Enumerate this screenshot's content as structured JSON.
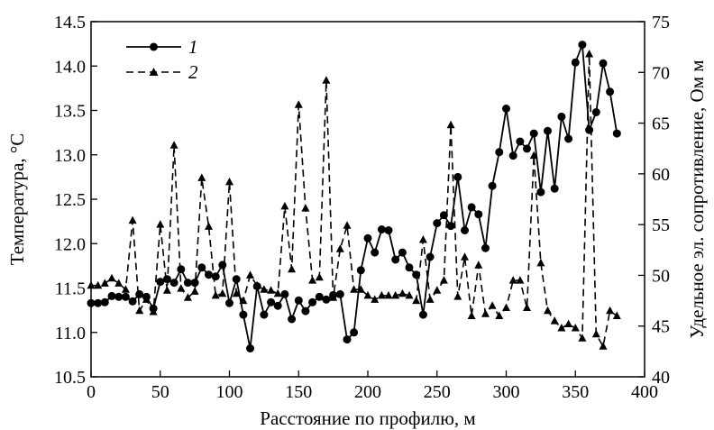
{
  "chart_data": {
    "type": "line",
    "xlabel": "Расстояние по профилю, м",
    "ylabel_left": "Температура, °C",
    "ylabel_right": "Удельное эл. сопротивление, Ом м",
    "xlim": [
      0,
      400
    ],
    "ylim_left": [
      10.5,
      14.5
    ],
    "ylim_right": [
      40,
      75
    ],
    "x_ticks": [
      "0",
      "50",
      "100",
      "150",
      "200",
      "250",
      "300",
      "350",
      "400"
    ],
    "y_left_ticks": [
      "10.5",
      "11.0",
      "11.5",
      "12.0",
      "12.5",
      "13.0",
      "13.5",
      "14.0",
      "14.5"
    ],
    "y_right_ticks": [
      "40",
      "45",
      "50",
      "55",
      "60",
      "65",
      "70",
      "75"
    ],
    "grid": false,
    "legend_position": "top-left",
    "series": [
      {
        "name": "1",
        "axis": "left",
        "style": "solid",
        "marker": "circle",
        "x": [
          0,
          5,
          10,
          15,
          20,
          25,
          30,
          35,
          40,
          45,
          50,
          55,
          60,
          65,
          70,
          75,
          80,
          85,
          90,
          95,
          100,
          105,
          110,
          115,
          120,
          125,
          130,
          135,
          140,
          145,
          150,
          155,
          160,
          165,
          170,
          175,
          180,
          185,
          190,
          195,
          200,
          205,
          210,
          215,
          220,
          225,
          230,
          235,
          240,
          245,
          250,
          255,
          260,
          265,
          270,
          275,
          280,
          285,
          290,
          295,
          300,
          305,
          310,
          315,
          320,
          325,
          330,
          335,
          340,
          345,
          350,
          355,
          360,
          365,
          370,
          375,
          380
        ],
        "values": [
          11.33,
          11.33,
          11.34,
          11.41,
          11.4,
          11.4,
          11.35,
          11.43,
          11.4,
          11.27,
          11.57,
          11.6,
          11.56,
          11.71,
          11.56,
          11.56,
          11.73,
          11.65,
          11.63,
          11.76,
          11.33,
          11.6,
          11.2,
          10.82,
          11.52,
          11.2,
          11.34,
          11.3,
          11.43,
          11.15,
          11.36,
          11.24,
          11.34,
          11.4,
          11.37,
          11.42,
          11.43,
          10.92,
          11.0,
          11.7,
          12.06,
          11.9,
          12.16,
          12.15,
          11.82,
          11.9,
          11.73,
          11.65,
          11.2,
          11.85,
          12.23,
          12.32,
          12.2,
          12.75,
          12.15,
          12.41,
          12.33,
          11.95,
          12.65,
          13.03,
          13.52,
          12.99,
          13.15,
          13.07,
          13.24,
          12.58,
          13.27,
          12.62,
          13.43,
          13.18,
          14.04,
          14.24,
          13.28,
          13.48,
          14.03,
          13.71,
          13.24
        ]
      },
      {
        "name": "2",
        "axis": "right",
        "style": "dashed",
        "marker": "triangle",
        "x": [
          0,
          5,
          10,
          15,
          20,
          25,
          30,
          35,
          40,
          45,
          50,
          55,
          60,
          65,
          70,
          75,
          80,
          85,
          90,
          95,
          100,
          105,
          110,
          115,
          120,
          125,
          130,
          135,
          140,
          145,
          150,
          155,
          160,
          165,
          170,
          175,
          180,
          185,
          190,
          195,
          200,
          205,
          210,
          215,
          220,
          225,
          230,
          235,
          240,
          245,
          250,
          255,
          260,
          265,
          270,
          275,
          280,
          285,
          290,
          295,
          300,
          305,
          310,
          315,
          320,
          325,
          330,
          335,
          340,
          345,
          350,
          355,
          360,
          365,
          370,
          375,
          380
        ],
        "values": [
          49,
          49,
          49.2,
          49.7,
          49.2,
          48.6,
          55.4,
          46.5,
          47.6,
          46.4,
          55,
          48.5,
          62.8,
          48.7,
          47.8,
          48.4,
          59.6,
          54.8,
          48,
          48.2,
          59.2,
          48.2,
          47.5,
          50,
          49,
          48.6,
          48.5,
          48.2,
          56.8,
          50.6,
          66.8,
          56.6,
          49.5,
          49.8,
          69.2,
          47.8,
          52.6,
          54.9,
          48.6,
          48.6,
          48,
          47.6,
          48,
          48,
          48,
          48.2,
          48,
          47.5,
          53.5,
          47.6,
          48.5,
          49.5,
          64.8,
          47.9,
          51.8,
          46,
          51,
          46.2,
          47,
          46,
          46.8,
          49.5,
          49.5,
          46.8,
          61.8,
          51.2,
          46.5,
          45.5,
          44.8,
          45.2,
          44.8,
          43.8,
          71.8,
          44.2,
          43,
          46.5,
          46
        ]
      }
    ],
    "legend": [
      {
        "label": "1",
        "style": "solid",
        "marker": "circle"
      },
      {
        "label": "2",
        "style": "dashed",
        "marker": "triangle"
      }
    ]
  }
}
